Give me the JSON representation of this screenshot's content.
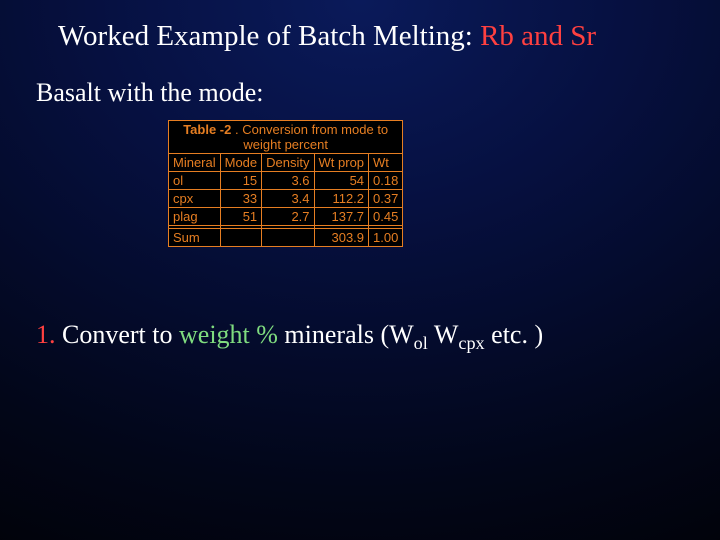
{
  "title": {
    "prefix": "Worked Example of Batch Melting: ",
    "accent": "Rb and Sr"
  },
  "subtitle": "Basalt with the mode:",
  "table": {
    "caption_label": "Table -2",
    "caption_sep": " . ",
    "caption_text_line1": "Conversion from mode to",
    "caption_text_line2": "weight percent",
    "columns": [
      "Mineral",
      "Mode",
      "Density",
      "Wt prop",
      "Wt"
    ],
    "rows": [
      {
        "mineral": "ol",
        "mode": "15",
        "density": "3.6",
        "wtprop": "54",
        "wt": "0.18"
      },
      {
        "mineral": "cpx",
        "mode": "33",
        "density": "3.4",
        "wtprop": "112.2",
        "wt": "0.37"
      },
      {
        "mineral": "plag",
        "mode": "51",
        "density": "2.7",
        "wtprop": "137.7",
        "wt": "0.45"
      }
    ],
    "sum": {
      "label": "Sum",
      "wtprop": "303.9",
      "wt": "1.00"
    }
  },
  "step": {
    "number": "1.",
    "prefix": "  Convert to ",
    "highlight": "weight %",
    "mid": " minerals  (",
    "w1_base": "W",
    "w1_sub": "ol",
    "space": " ",
    "w2_base": "W",
    "w2_sub": "cpx",
    "suffix": " etc. )"
  },
  "colors": {
    "accent_red": "#ff4040",
    "table_orange": "#e67e22",
    "highlight_green": "#7fdc7f",
    "text_white": "#ffffff",
    "bg_center": "#0a1a5a",
    "bg_edge": "#000000"
  }
}
